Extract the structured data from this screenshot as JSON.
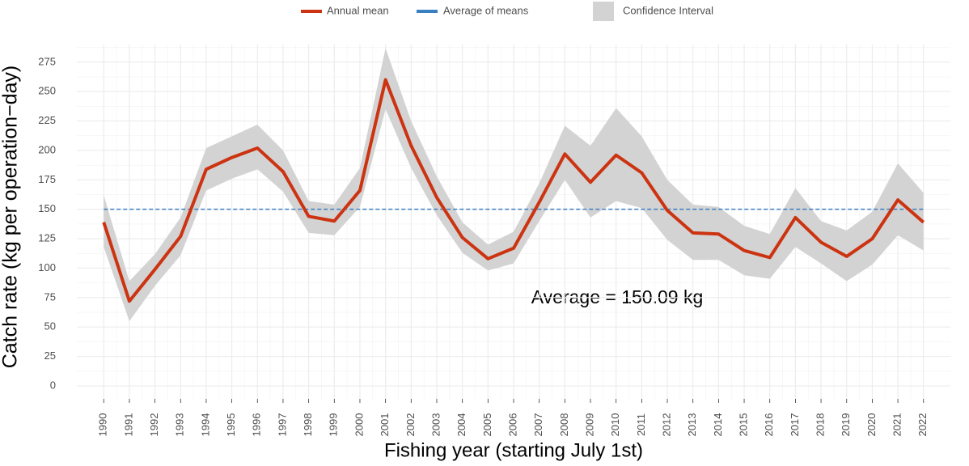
{
  "chart_data": {
    "type": "line",
    "x_label": "Fishing year (starting July 1st)",
    "y_label": "Catch rate (kg per operation−day)",
    "x": [
      1990,
      1991,
      1992,
      1993,
      1994,
      1995,
      1996,
      1997,
      1998,
      1999,
      2000,
      2001,
      2002,
      2003,
      2004,
      2005,
      2006,
      2007,
      2008,
      2009,
      2010,
      2011,
      2012,
      2013,
      2014,
      2015,
      2016,
      2017,
      2018,
      2019,
      2020,
      2021,
      2022
    ],
    "xlim": [
      1988.95,
      2023.05
    ],
    "xticks": [
      1990,
      1991,
      1992,
      1993,
      1994,
      1995,
      1996,
      1997,
      1998,
      1999,
      2000,
      2001,
      2002,
      2003,
      2004,
      2005,
      2006,
      2007,
      2008,
      2009,
      2010,
      2011,
      2012,
      2013,
      2014,
      2015,
      2016,
      2017,
      2018,
      2019,
      2020,
      2021,
      2022
    ],
    "ylim": [
      -11,
      290
    ],
    "yticks": [
      0,
      25,
      50,
      75,
      100,
      125,
      150,
      175,
      200,
      225,
      250,
      275
    ],
    "grid": true,
    "legend": "top",
    "series": [
      {
        "name": "Annual mean",
        "color": "#cc3311",
        "values": [
          139,
          72,
          99,
          127,
          184,
          194,
          202,
          182,
          144,
          140,
          166,
          260,
          204,
          160,
          126,
          108,
          117,
          156,
          197,
          173,
          196,
          181,
          149,
          130,
          129,
          115,
          109,
          143,
          122,
          110,
          125,
          158,
          139
        ]
      }
    ],
    "band": {
      "name": "Confidence Interval",
      "color": "#d3d3d3",
      "lower": [
        118,
        55,
        85,
        111,
        166,
        176,
        184,
        165,
        130,
        128,
        152,
        235,
        185,
        145,
        113,
        98,
        104,
        140,
        175,
        143,
        157,
        151,
        124,
        107,
        107,
        94,
        91,
        118,
        104,
        89,
        103,
        128,
        115
      ],
      "upper": [
        162,
        89,
        112,
        143,
        202,
        212,
        222,
        200,
        157,
        154,
        185,
        287,
        225,
        178,
        139,
        120,
        131,
        172,
        221,
        204,
        236,
        212,
        175,
        154,
        152,
        136,
        129,
        168,
        140,
        132,
        148,
        189,
        164
      ]
    },
    "reference_line": {
      "name": "Average of means",
      "value": 150.09,
      "color": "#3a7fc1"
    },
    "annotation": "Average = 150.09 kg"
  }
}
